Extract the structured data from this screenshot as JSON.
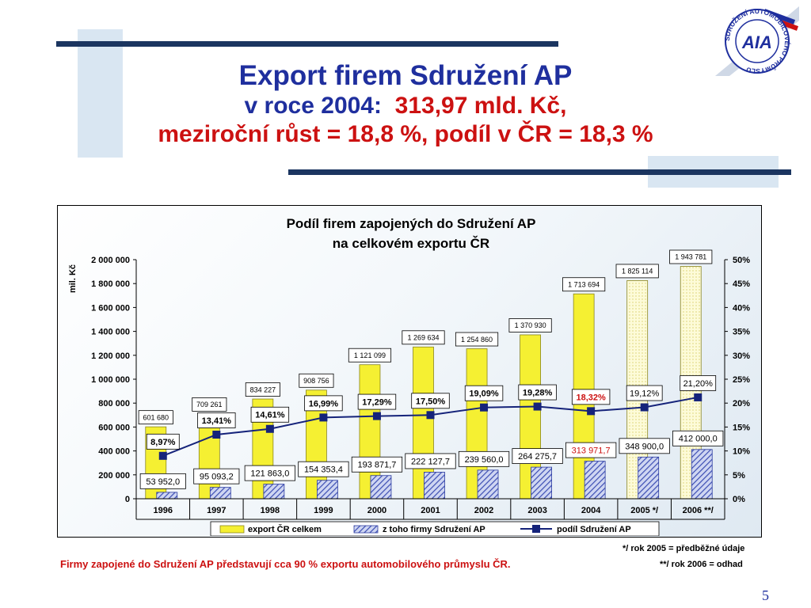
{
  "title": {
    "line1": "Export firem Sdružení AP",
    "line2_prefix": "v roce 2004:",
    "line2_value": "313,97 mld. Kč,",
    "line3": "meziroční růst = 18,8 %, podíl v ČR = 18,3 %"
  },
  "logo": {
    "text": "AIA",
    "ring_text": "SDRUŽENÍ AUTOMOBILOVÉHO PRŮMYSLU"
  },
  "colors": {
    "accent_blue": "#1f2f9e",
    "accent_red": "#cc1111",
    "deco_navy": "#1b3560",
    "deco_light": "#d9e6f2"
  },
  "chart_data": {
    "type": "bar",
    "title_line1": "Podíl firem zapojených do Sdružení AP",
    "title_line2": "na celkovém exportu ČR",
    "ylabel": "mil. Kč",
    "ylim": [
      0,
      2000000
    ],
    "y2lim": [
      0,
      50
    ],
    "yticks": [
      "0",
      "200 000",
      "400 000",
      "600 000",
      "800 000",
      "1 000 000",
      "1 200 000",
      "1 400 000",
      "1 600 000",
      "1 800 000",
      "2 000 000"
    ],
    "y2ticks": [
      "0%",
      "5%",
      "10%",
      "15%",
      "20%",
      "25%",
      "30%",
      "35%",
      "40%",
      "45%",
      "50%"
    ],
    "categories": [
      "1996",
      "1997",
      "1998",
      "1999",
      "2000",
      "2001",
      "2002",
      "2003",
      "2004",
      "2005 */",
      "2006 **/"
    ],
    "estimated_from_index": 9,
    "highlight_index": 8,
    "series": [
      {
        "name": "export ČR celkem",
        "color": "#f5f032",
        "values": [
          601680,
          709261,
          834227,
          908756,
          1121099,
          1269634,
          1254860,
          1370930,
          1713694,
          1825114,
          1943781
        ],
        "labels": [
          "601 680",
          "709 261",
          "834 227",
          "908 756",
          "1 121 099",
          "1 269 634",
          "1 254 860",
          "1 370 930",
          "1 713 694",
          "1 825 114",
          "1 943 781"
        ]
      },
      {
        "name": "z toho firmy Sdružení AP",
        "color": "#3b4db3",
        "values": [
          53952.0,
          95093.2,
          121863.0,
          154353.4,
          193871.7,
          222127.7,
          239560.0,
          264275.7,
          313971.7,
          348900.0,
          412000.0
        ],
        "labels": [
          "53 952,0",
          "95 093,2",
          "121 863,0",
          "154 353,4",
          "193 871,7",
          "222 127,7",
          "239 560,0",
          "264 275,7",
          "313 971,7",
          "348 900,0",
          "412 000,0"
        ]
      },
      {
        "name": "podíl Sdružení AP",
        "color": "#15237a",
        "values": [
          8.97,
          13.41,
          14.61,
          16.99,
          17.29,
          17.5,
          19.09,
          19.28,
          18.32,
          19.12,
          21.2
        ],
        "labels": [
          "8,97%",
          "13,41%",
          "14,61%",
          "16,99%",
          "17,29%",
          "17,50%",
          "19,09%",
          "19,28%",
          "18,32%",
          "19,12%",
          "21,20%"
        ]
      }
    ]
  },
  "notes": {
    "members": "Firmy zapojené do Sdružení AP představují cca 90 % exportu automobilového průmyslu ČR.",
    "footnote1": "*/ rok 2005 = předběžné údaje",
    "footnote2": "**/ rok 2006 = odhad"
  },
  "page_number": "5"
}
